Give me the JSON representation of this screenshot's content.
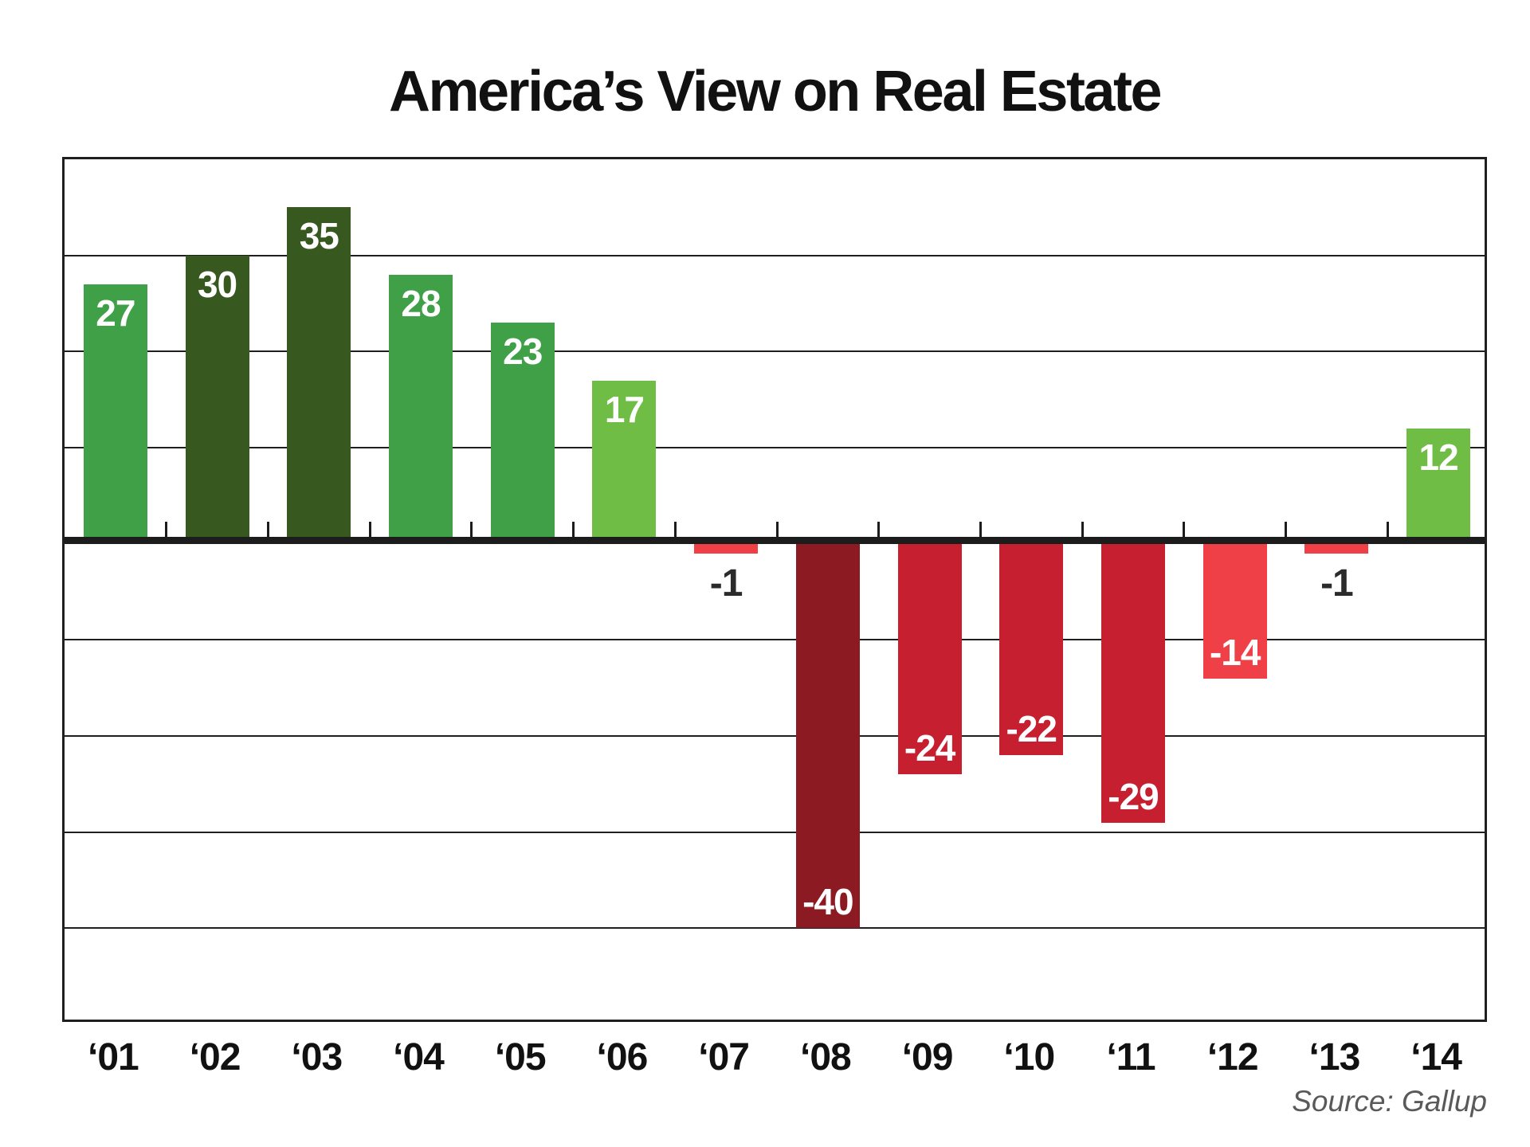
{
  "chart_data": {
    "type": "bar",
    "title": "America’s View on Real Estate",
    "source_note": "Source: Gallup",
    "categories": [
      "‘01",
      "‘02",
      "‘03",
      "‘04",
      "‘05",
      "‘06",
      "‘07",
      "‘08",
      "‘09",
      "‘10",
      "‘11",
      "‘12",
      "‘13",
      "‘14"
    ],
    "values": [
      27,
      30,
      35,
      28,
      23,
      17,
      -1,
      -40,
      -24,
      -22,
      -29,
      -14,
      -1,
      12
    ],
    "bar_colors": [
      "#3FA047",
      "#37591F",
      "#37591F",
      "#3FA047",
      "#3FA047",
      "#6FBD44",
      "#EF4048",
      "#8B1A23",
      "#C51F30",
      "#C51F30",
      "#C51F30",
      "#EF4048",
      "#EF4048",
      "#6FBD44"
    ],
    "ylim": [
      -50,
      40
    ],
    "gridline_step": 10,
    "grid": true,
    "legend_position": "none",
    "value_label_inside_color": "#FFFFFF",
    "value_label_outside_color": "#2B2B2B"
  },
  "colors": {
    "axis": "#1C1C1C",
    "gridline": "#1F1F1F",
    "plot_border": "#1F1F1F",
    "title": "#111111",
    "x_labels": "#111111",
    "source": "#595959",
    "background": "#FFFFFF"
  }
}
